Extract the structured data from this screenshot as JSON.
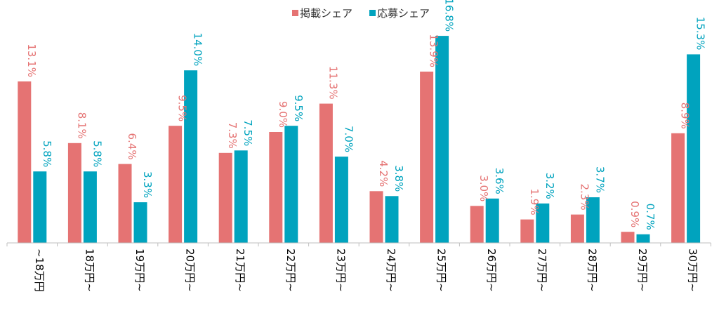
{
  "chart_data": {
    "type": "bar",
    "categories": [
      "~18万円",
      "18万円~",
      "19万円~",
      "20万円~",
      "21万円~",
      "22万円~",
      "23万円~",
      "24万円~",
      "25万円~",
      "26万円~",
      "27万円~",
      "28万円~",
      "29万円~",
      "30万円~"
    ],
    "series": [
      {
        "name": "掲載シェア",
        "color": "#E57373",
        "values": [
          13.1,
          8.1,
          6.4,
          9.5,
          7.3,
          9.0,
          11.3,
          4.2,
          13.9,
          3.0,
          1.9,
          2.3,
          0.9,
          8.9
        ],
        "labels": [
          "13.1%",
          "8.1%",
          "6.4%",
          "9.5%",
          "7.3%",
          "9.0%",
          "11.3%",
          "4.2%",
          "13.9%",
          "3.0%",
          "1.9%",
          "2.3%",
          "0.9%",
          "8.9%"
        ]
      },
      {
        "name": "応募シェア",
        "color": "#00A3BE",
        "values": [
          5.8,
          5.8,
          3.3,
          14.0,
          7.5,
          9.5,
          7.0,
          3.8,
          16.8,
          3.6,
          3.2,
          3.7,
          0.7,
          15.3
        ],
        "labels": [
          "5.8%",
          "5.8%",
          "3.3%",
          "14.0%",
          "7.5%",
          "9.5%",
          "7.0%",
          "3.8%",
          "16.8%",
          "3.6%",
          "3.2%",
          "3.7%",
          "0.7%",
          "15.3%"
        ]
      }
    ],
    "title": "",
    "xlabel": "",
    "ylabel": "",
    "ylim": [
      0,
      18
    ],
    "legend_position": "top-center",
    "grid": false
  }
}
